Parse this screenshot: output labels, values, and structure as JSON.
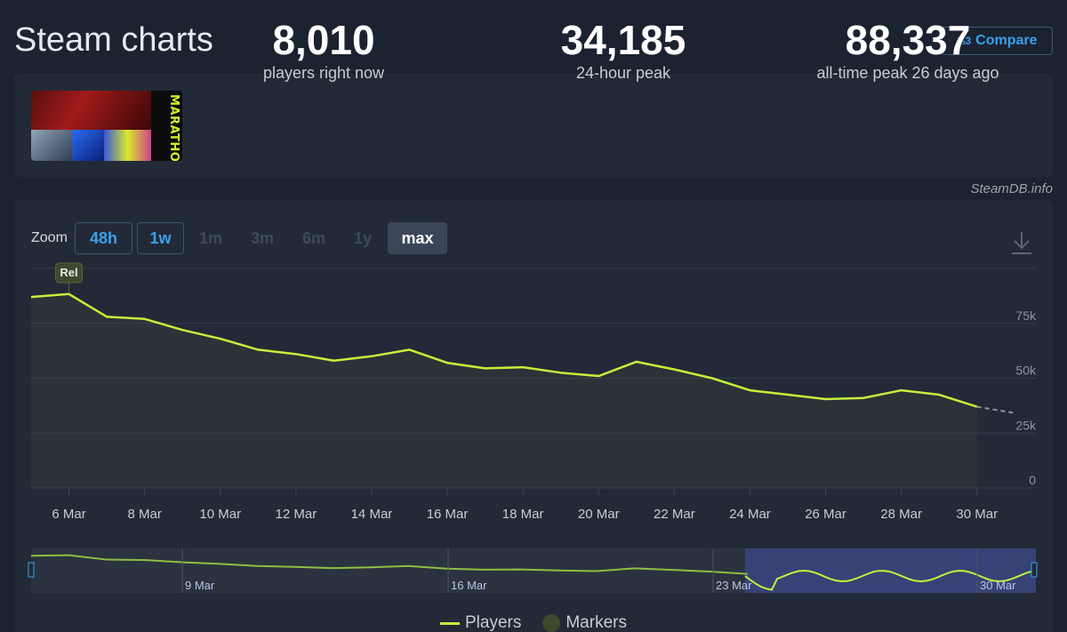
{
  "header": {
    "title": "Steam charts",
    "compare_label": "Compare",
    "compare_icon": "fraction-icon"
  },
  "stats": [
    {
      "value": "8,010",
      "label": "players right now"
    },
    {
      "value": "34,185",
      "label": "24-hour peak"
    },
    {
      "value": "88,337",
      "label": "all-time peak 26 days ago"
    }
  ],
  "game": {
    "logo_text": "MARATHON"
  },
  "credit": "SteamDB.info",
  "zoom": {
    "label": "Zoom",
    "options": [
      "48h",
      "1w",
      "1m",
      "3m",
      "6m",
      "1y",
      "max"
    ],
    "active": "max"
  },
  "colors": {
    "accent": "#3aa0ee",
    "series": "#c4f03a",
    "background": "#1b2230",
    "panel": "#222a37"
  },
  "chart_data": {
    "type": "line",
    "title": "",
    "xlabel": "",
    "ylabel": "",
    "x": [
      "2025-03-05",
      "2025-03-06",
      "2025-03-07",
      "2025-03-08",
      "2025-03-09",
      "2025-03-10",
      "2025-03-11",
      "2025-03-12",
      "2025-03-13",
      "2025-03-14",
      "2025-03-15",
      "2025-03-16",
      "2025-03-17",
      "2025-03-18",
      "2025-03-19",
      "2025-03-20",
      "2025-03-21",
      "2025-03-22",
      "2025-03-23",
      "2025-03-24",
      "2025-03-25",
      "2025-03-26",
      "2025-03-27",
      "2025-03-28",
      "2025-03-29",
      "2025-03-30"
    ],
    "series": [
      {
        "name": "Players",
        "values": [
          87000,
          88337,
          78000,
          77000,
          72000,
          68000,
          63000,
          61000,
          58000,
          60000,
          63000,
          57000,
          54500,
          55000,
          52500,
          51000,
          57500,
          54000,
          50000,
          44500,
          42500,
          40500,
          41000,
          44500,
          42500,
          37000
        ]
      }
    ],
    "projection": {
      "from": "2025-03-30",
      "to_value": 34185
    },
    "ylim": [
      0,
      100000
    ],
    "y_ticks": [
      0,
      25000,
      50000,
      75000
    ],
    "y_tick_labels": [
      "0",
      "25k",
      "50k",
      "75k"
    ],
    "x_ticks": [
      "6 Mar",
      "8 Mar",
      "10 Mar",
      "12 Mar",
      "14 Mar",
      "16 Mar",
      "18 Mar",
      "20 Mar",
      "22 Mar",
      "24 Mar",
      "26 Mar",
      "28 Mar",
      "30 Mar"
    ],
    "markers": [
      {
        "x": "2025-03-06",
        "label": "Rel"
      }
    ],
    "navigator_labels": [
      "9 Mar",
      "16 Mar",
      "23 Mar",
      "30 Mar"
    ],
    "grid": true,
    "legend": [
      "Players",
      "Markers"
    ],
    "legend_position": "bottom-center"
  }
}
